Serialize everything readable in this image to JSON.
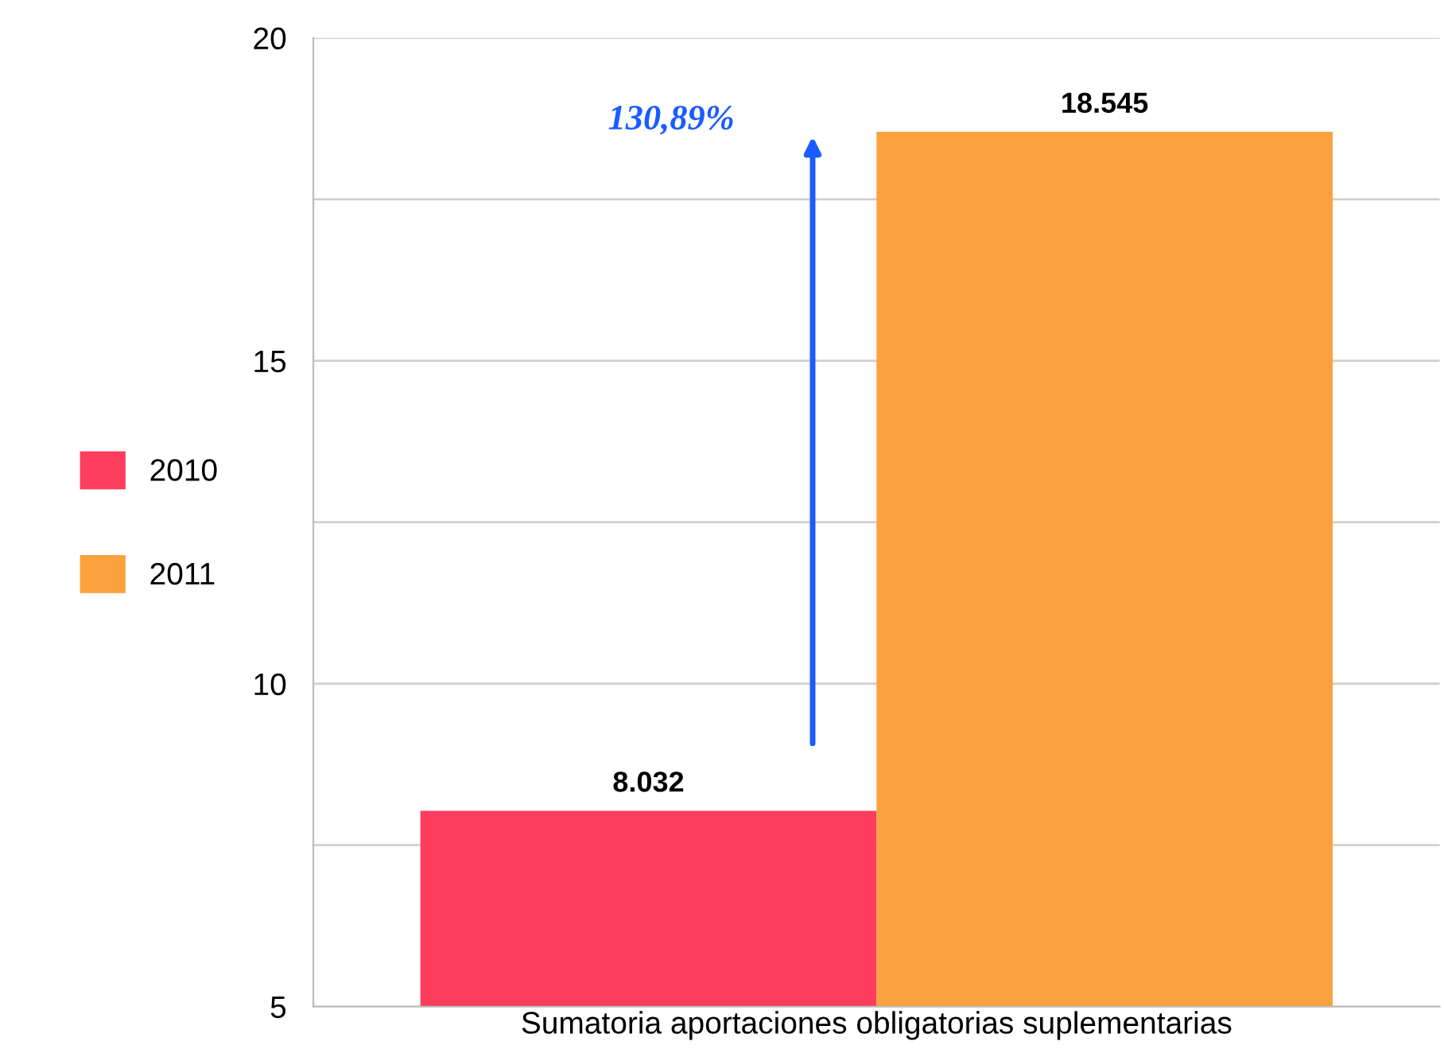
{
  "chart_data": {
    "type": "bar",
    "categories": [
      "Sumatoria aportaciones obligatorias suplementarias"
    ],
    "series": [
      {
        "name": "2010",
        "color": "#fc3d5d",
        "values": [
          8.032
        ]
      },
      {
        "name": "2011",
        "color": "#fba23e",
        "values": [
          18.545
        ]
      }
    ],
    "ylim": [
      5,
      20
    ],
    "yticks": [
      5,
      {
        "value": 7.5,
        "label": null
      },
      10,
      {
        "value": 12.5,
        "label": null
      },
      15,
      {
        "value": 17.5,
        "label": null
      },
      20
    ],
    "grid": "y",
    "legend": "left",
    "data_labels": true,
    "annotations": [
      "130,89%"
    ]
  }
}
